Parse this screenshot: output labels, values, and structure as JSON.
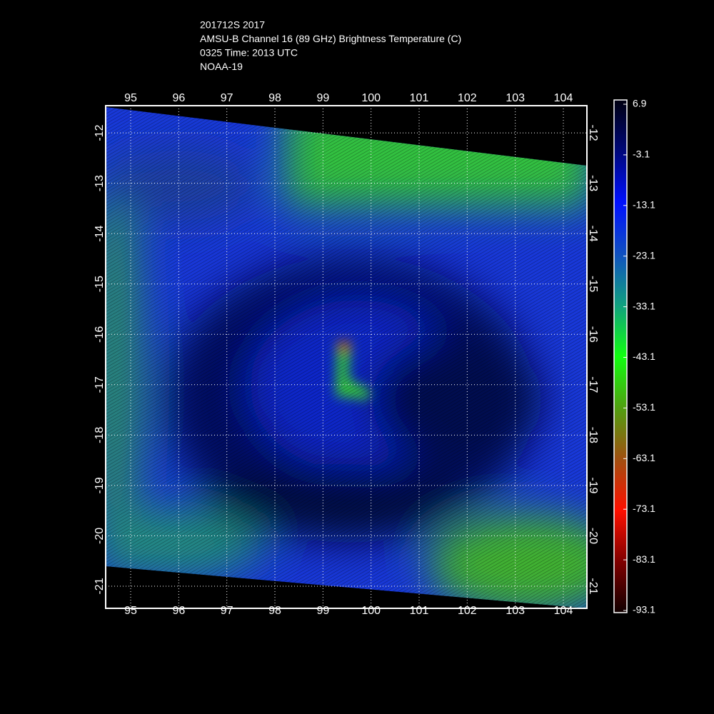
{
  "header": {
    "lines": [
      "201712S 2017",
      "AMSU-B Channel 16 (89 GHz) Brightness Temperature (C)",
      "0325 Time: 2013 UTC",
      "NOAA-19"
    ]
  },
  "map": {
    "xlim": [
      94.48,
      104.49
    ],
    "xticks": [
      95,
      96,
      97,
      98,
      99,
      100,
      101,
      102,
      103,
      104
    ],
    "ylim": [
      -21.44,
      -11.46
    ],
    "yticks": [
      -12,
      -13,
      -14,
      -15,
      -16,
      -17,
      -18,
      -19,
      -20,
      -21
    ],
    "grid": true
  },
  "colorbar": {
    "lim": [
      -93.1,
      6.9
    ],
    "ticks": [
      6.9,
      -3.1,
      -13.1,
      -23.1,
      -33.1,
      -43.1,
      -53.1,
      -63.1,
      -73.1,
      -83.1,
      -93.1
    ]
  }
}
